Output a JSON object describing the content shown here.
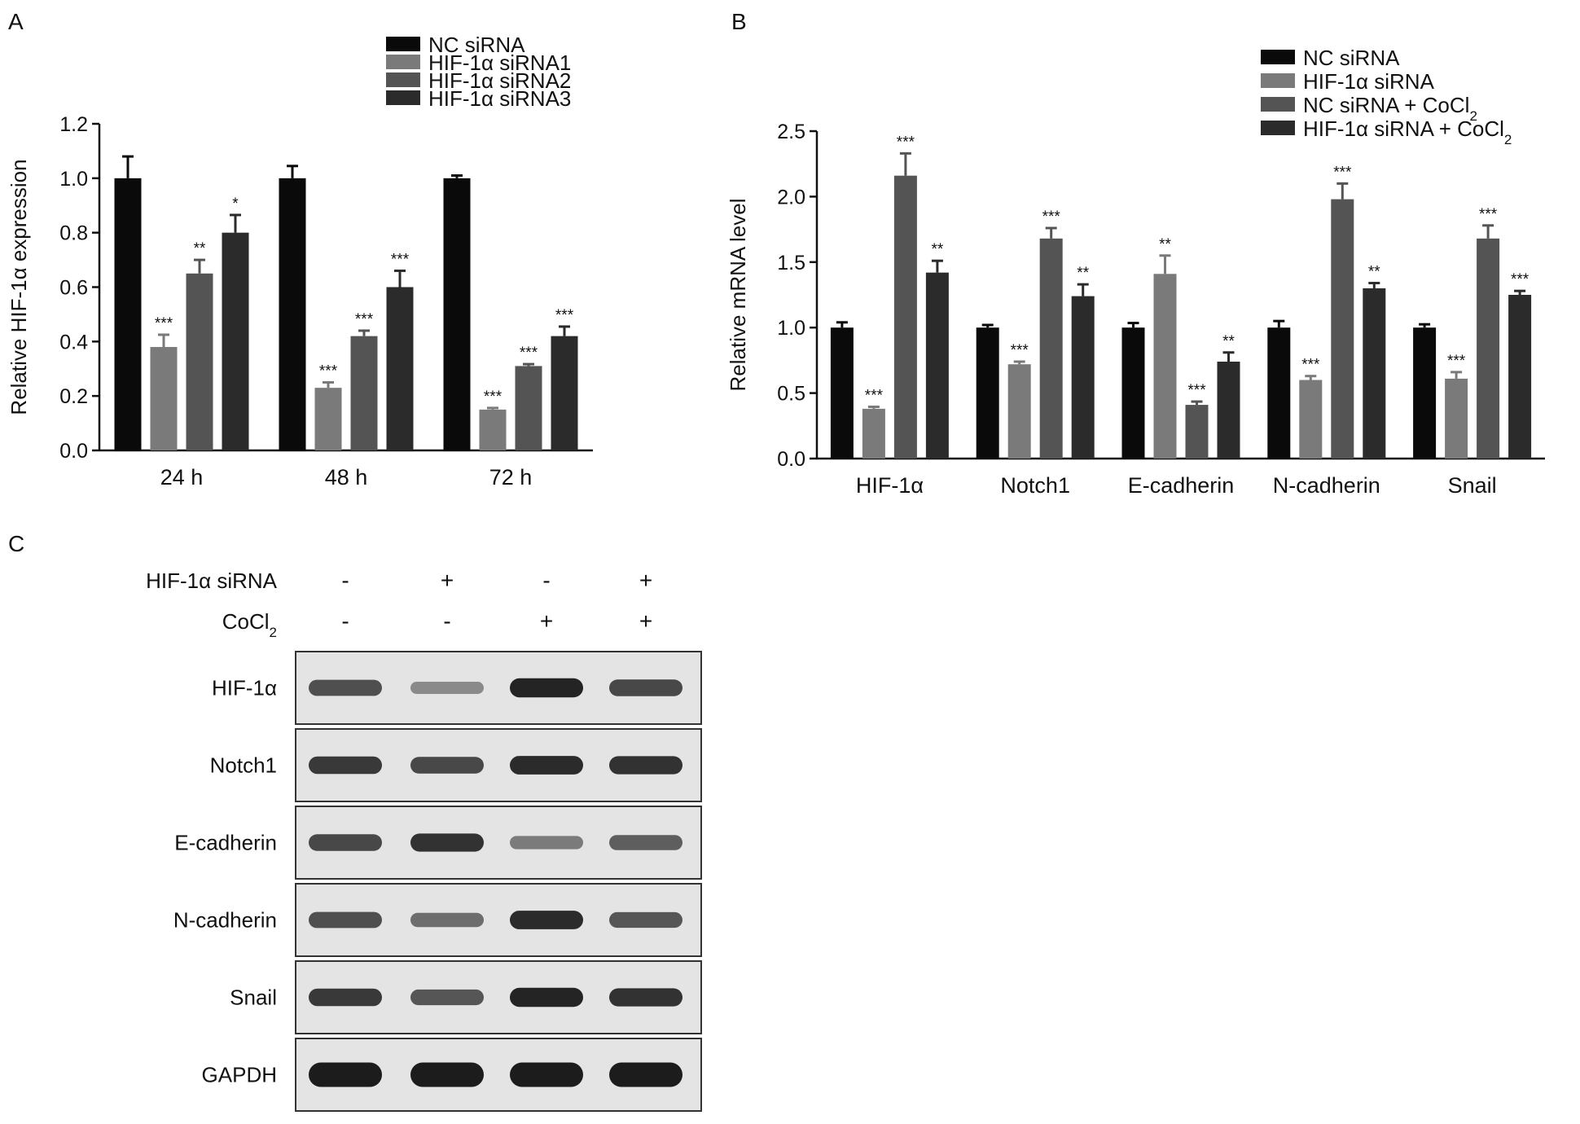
{
  "panels": {
    "a": "A",
    "b": "B",
    "c": "C"
  },
  "chart_data": [
    {
      "type": "bar",
      "ylabel": "Relative HIF-1α expression",
      "xlabel": "",
      "ylim": [
        0,
        1.2
      ],
      "yticks": [
        "0.0",
        "0.2",
        "0.4",
        "0.6",
        "0.8",
        "1.0",
        "1.2"
      ],
      "legend_position": "top-right",
      "categories": [
        "24 h",
        "48 h",
        "72 h"
      ],
      "series": [
        {
          "name": "NC siRNA",
          "color": "#0a0a0a",
          "values": [
            1.0,
            1.0,
            1.0
          ],
          "errors": [
            0.08,
            0.045,
            0.01
          ],
          "sig": [
            "",
            "",
            ""
          ]
        },
        {
          "name": "HIF-1α siRNA1",
          "color": "#7a7a7a",
          "values": [
            0.38,
            0.23,
            0.15
          ],
          "errors": [
            0.045,
            0.02,
            0.006
          ],
          "sig": [
            "***",
            "***",
            "***"
          ]
        },
        {
          "name": "HIF-1α siRNA2",
          "color": "#545454",
          "values": [
            0.65,
            0.42,
            0.31
          ],
          "errors": [
            0.05,
            0.02,
            0.007
          ],
          "sig": [
            "**",
            "***",
            "***"
          ]
        },
        {
          "name": "HIF-1α siRNA3",
          "color": "#2b2b2b",
          "values": [
            0.8,
            0.6,
            0.42
          ],
          "errors": [
            0.065,
            0.06,
            0.035
          ],
          "sig": [
            "*",
            "***",
            "***"
          ]
        }
      ]
    },
    {
      "type": "bar",
      "ylabel": "Relative mRNA level",
      "xlabel": "",
      "ylim": [
        0,
        2.5
      ],
      "yticks": [
        "0.0",
        "0.5",
        "1.0",
        "1.5",
        "2.0",
        "2.5"
      ],
      "legend_position": "top-right",
      "categories": [
        "HIF-1α",
        "Notch1",
        "E-cadherin",
        "N-cadherin",
        "Snail"
      ],
      "series": [
        {
          "name": "NC siRNA",
          "color": "#0a0a0a",
          "values": [
            1.0,
            1.0,
            1.0,
            1.0,
            1.0
          ],
          "errors": [
            0.04,
            0.02,
            0.035,
            0.05,
            0.025
          ],
          "sig": [
            "",
            "",
            "",
            "",
            ""
          ]
        },
        {
          "name": "HIF-1α siRNA",
          "color": "#7a7a7a",
          "values": [
            0.38,
            0.72,
            1.41,
            0.6,
            0.61
          ],
          "errors": [
            0.015,
            0.02,
            0.14,
            0.03,
            0.05
          ],
          "sig": [
            "***",
            "***",
            "**",
            "***",
            "***"
          ]
        },
        {
          "name": "NC siRNA + CoCl",
          "name_sub": "2",
          "color": "#545454",
          "values": [
            2.16,
            1.68,
            0.41,
            1.98,
            1.68
          ],
          "errors": [
            0.17,
            0.08,
            0.025,
            0.12,
            0.1
          ],
          "sig": [
            "***",
            "***",
            "***",
            "***",
            "***"
          ]
        },
        {
          "name": "HIF-1α siRNA + CoCl",
          "name_sub": "2",
          "color": "#2b2b2b",
          "values": [
            1.42,
            1.24,
            0.74,
            1.3,
            1.25
          ],
          "errors": [
            0.09,
            0.09,
            0.07,
            0.04,
            0.03
          ],
          "sig": [
            "**",
            "**",
            "**",
            "**",
            "***"
          ]
        }
      ]
    }
  ],
  "western_blot": {
    "treatments": [
      {
        "label": "HIF-1α siRNA",
        "label_sub": "",
        "signs": [
          "-",
          "+",
          "-",
          "+"
        ]
      },
      {
        "label": "CoCl",
        "label_sub": "2",
        "signs": [
          "-",
          "-",
          "+",
          "+"
        ]
      }
    ],
    "rows": [
      {
        "label": "HIF-1α",
        "intensity": [
          0.65,
          0.25,
          0.95,
          0.7
        ]
      },
      {
        "label": "Notch1",
        "intensity": [
          0.8,
          0.7,
          0.9,
          0.85
        ]
      },
      {
        "label": "E-cadherin",
        "intensity": [
          0.7,
          0.85,
          0.35,
          0.55
        ]
      },
      {
        "label": "N-cadherin",
        "intensity": [
          0.65,
          0.45,
          0.9,
          0.6
        ]
      },
      {
        "label": "Snail",
        "intensity": [
          0.8,
          0.6,
          0.95,
          0.85
        ]
      },
      {
        "label": "GAPDH",
        "intensity": [
          1.0,
          1.0,
          1.0,
          1.0
        ]
      }
    ]
  }
}
